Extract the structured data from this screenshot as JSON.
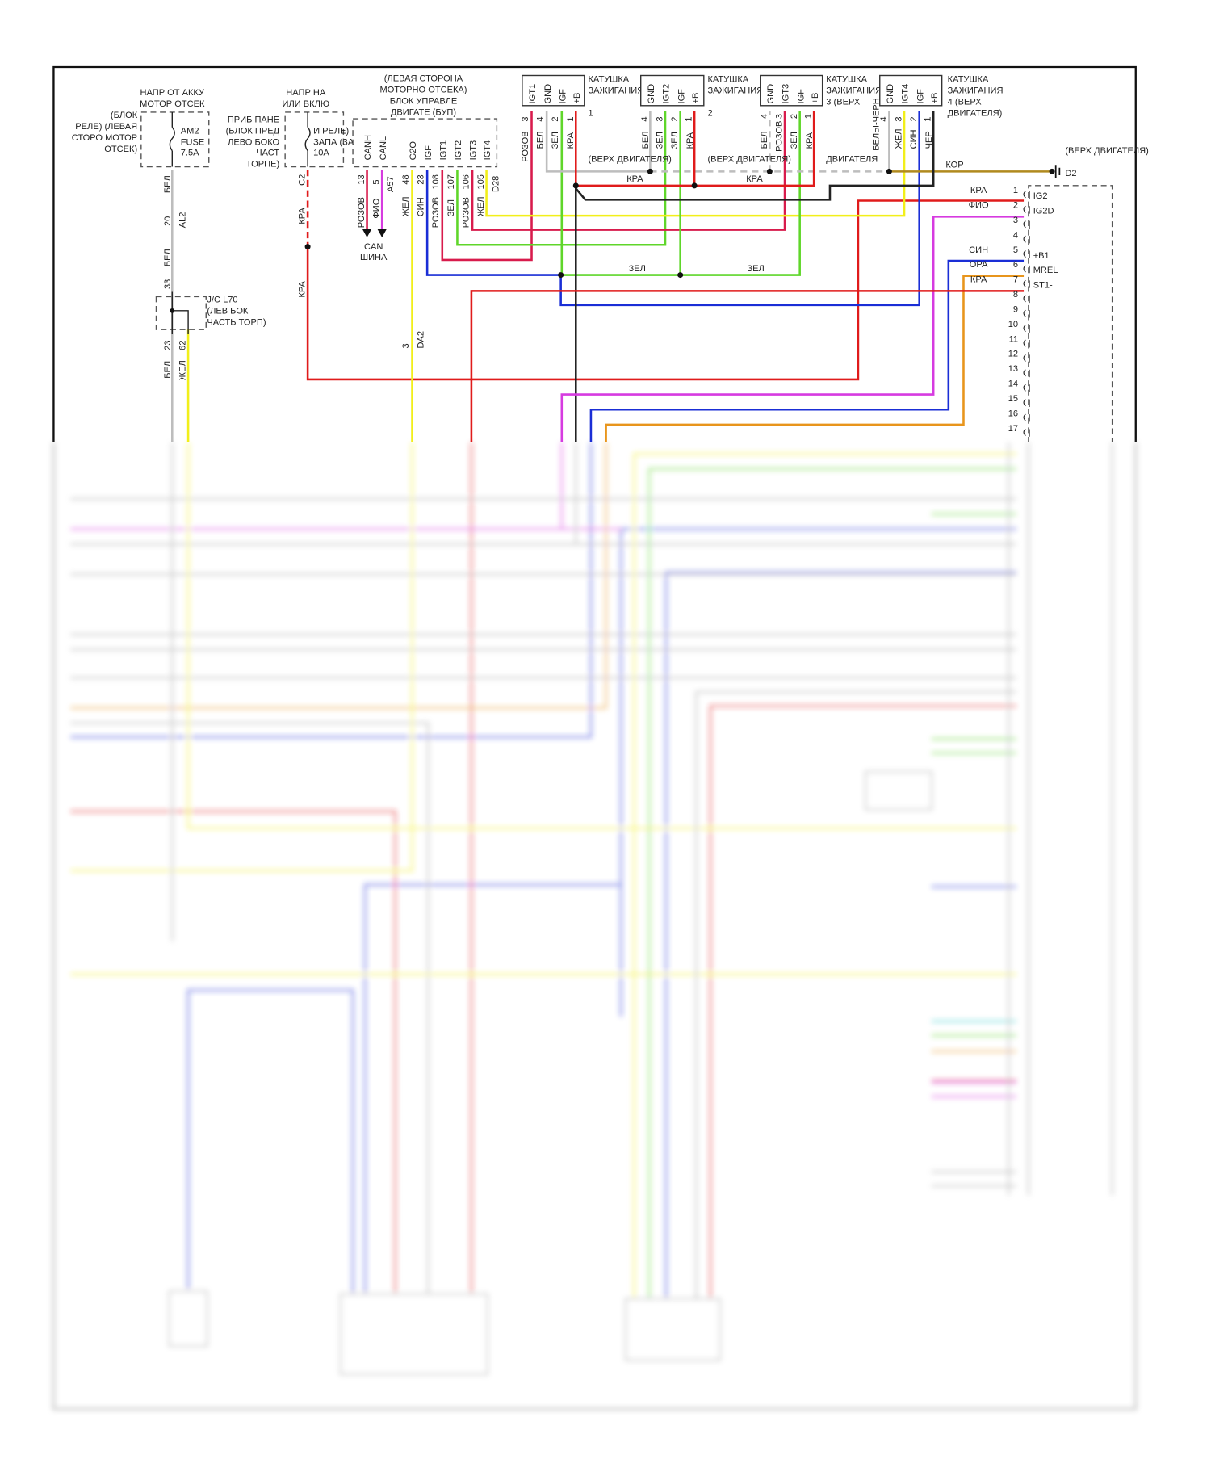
{
  "colors": {
    "red": "#e01b1b",
    "pink": "#d81b4c",
    "magenta": "#d63be0",
    "yellow": "#f2ef1a",
    "green": "#5fd62a",
    "blue": "#1a2ed6",
    "orange": "#e8951c",
    "black": "#222222",
    "gray": "#bdbdbd",
    "brown": "#b08a1e"
  },
  "fuse_am2": {
    "title": [
      "НАПР ОТ АККУ",
      "МОТОР ОТСЕК"
    ],
    "location": [
      "(БЛОК",
      "РЕЛЕ) (ЛЕВАЯ",
      "СТОРО МОТОР",
      "ОТСЕК)"
    ],
    "name": [
      "AM2",
      "FUSE",
      "7.5A"
    ],
    "wire": [
      "БЕЛ",
      "20",
      "AL2",
      "БЕЛ",
      "33"
    ]
  },
  "junction": {
    "name": [
      "J/C L70",
      "(ЛЕВ БОК",
      "ЧАСТЬ ТОРП)"
    ],
    "pins": [
      "23",
      "62"
    ],
    "wires": [
      "БЕЛ",
      "ЖЕЛ"
    ]
  },
  "fuse_ign": {
    "title": [
      "НАПР НА",
      "ИЛИ ВКЛЮ"
    ],
    "location": [
      "ПРИБ ПАНЕ",
      "(БЛОК ПРЕД",
      "ЛЕВО БОКО",
      "ЧАСТ",
      "ТОРПЕ)"
    ],
    "name": [
      "И РЕЛЕ)",
      "ЗАПА (ЗА",
      "10A"
    ],
    "wire": [
      "C2",
      "КРА",
      "КРА"
    ]
  },
  "ecm": {
    "title": [
      "(ЛЕВАЯ СТОРОНА",
      "МОТОРНО ОТСЕКА)",
      "БЛОК УПРАВЛЕ",
      "ДВИГАТЕ (БУП)"
    ],
    "pins": [
      "CANH",
      "CANL",
      "G2O",
      "IGF",
      "IGT1",
      "IGT2",
      "IGT3",
      "IGT4"
    ],
    "pin_numbers": [
      "13",
      "5",
      "A57",
      "48",
      "23",
      "108",
      "107",
      "106",
      "105",
      "D28"
    ],
    "wires": [
      "РОЗОВ",
      "ФИО",
      "ЖЕЛ",
      "СИН",
      "РОЗОВ",
      "ЗЕЛ",
      "РОЗОВ",
      "ЖЕЛ"
    ],
    "can_bus": [
      "CAN",
      "ШИНА"
    ],
    "g2o_connector": [
      "3",
      "DA2"
    ]
  },
  "coils": [
    {
      "title": [
        "КАТУШКА",
        "ЗАЖИГАНИЯ",
        "1",
        "(ВЕРХ ДВИГАТЕЛЯ)"
      ],
      "pins": [
        "IGT1",
        "GND",
        "IGF",
        "+B"
      ],
      "pin_numbers": [
        "3",
        "4",
        "2",
        "1"
      ],
      "wires": [
        "РОЗОВ",
        "БЕЛ",
        "ЗЕЛ",
        "КРА"
      ]
    },
    {
      "title": [
        "КАТУШКА",
        "ЗАЖИГАНИЯ",
        "2",
        "(ВЕРХ ДВИГАТЕЛЯ)"
      ],
      "pins": [
        "GND",
        "IGT2",
        "IGF",
        "+B"
      ],
      "pin_numbers": [
        "4",
        "3",
        "2",
        "1"
      ],
      "wires": [
        "БЕЛ",
        "ЗЕЛ",
        "ЗЕЛ",
        "КРА"
      ]
    },
    {
      "title": [
        "КАТУШКА",
        "ЗАЖИГАНИЯ",
        "3 (ВЕРХ",
        "ДВИГАТЕЛЯ"
      ],
      "pins": [
        "GND",
        "IGT3",
        "IGF",
        "+B"
      ],
      "pin_numbers": [
        "4",
        "3",
        "2",
        "1"
      ],
      "wires": [
        "БЕЛ",
        "РОЗОВ",
        "ЗЕЛ",
        "КРА"
      ]
    },
    {
      "title": [
        "КАТУШКА",
        "ЗАЖИГАНИЯ",
        "4 (ВЕРХ",
        "ДВИГАТЕЛЯ)"
      ],
      "pins": [
        "GND",
        "IGT4",
        "IGF",
        "+B"
      ],
      "pin_numbers": [
        "4",
        "3",
        "2",
        "1"
      ],
      "wires": [
        "БЕЛЫ-ЧЕРН",
        "ЖЕЛ",
        "СИН",
        "ЧЕР"
      ]
    }
  ],
  "bus_labels": {
    "power": [
      "КРА",
      "КРА"
    ],
    "igf": [
      "ЗЕЛ",
      "ЗЕЛ"
    ],
    "ground": "КОР"
  },
  "ground_point": {
    "location": "(ВЕРХ ДВИГАТЕЛЯ)",
    "name": "D2"
  },
  "right_connector": {
    "pins": [
      {
        "n": "1",
        "name": "IG2",
        "wire": "КРА"
      },
      {
        "n": "2",
        "name": "IG2D",
        "wire": "ФИО"
      },
      {
        "n": "3",
        "name": "",
        "wire": ""
      },
      {
        "n": "4",
        "name": "",
        "wire": ""
      },
      {
        "n": "5",
        "name": "+B1",
        "wire": "СИН"
      },
      {
        "n": "6",
        "name": "MREL",
        "wire": "ОРА"
      },
      {
        "n": "7",
        "name": "ST1-",
        "wire": "КРА"
      },
      {
        "n": "8"
      },
      {
        "n": "9"
      },
      {
        "n": "10"
      },
      {
        "n": "11"
      },
      {
        "n": "12"
      },
      {
        "n": "13"
      },
      {
        "n": "14"
      },
      {
        "n": "15"
      },
      {
        "n": "16"
      },
      {
        "n": "17"
      }
    ]
  }
}
